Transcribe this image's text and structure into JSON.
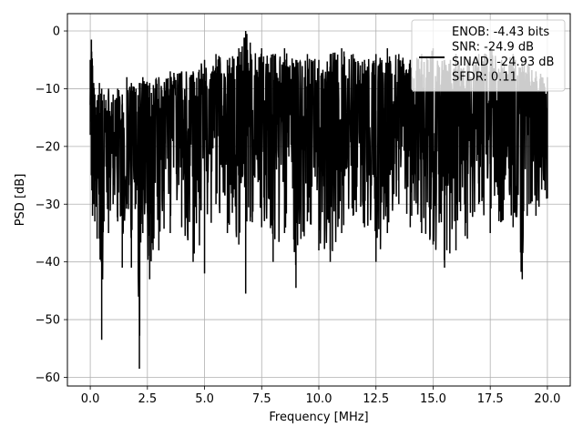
{
  "chart_data": {
    "type": "line",
    "xlabel": "Frequency [MHz]",
    "ylabel": "PSD [dB]",
    "xlim": [
      -1.0,
      21.0
    ],
    "ylim": [
      -61.5,
      3.0
    ],
    "x_ticks": [
      "0.0",
      "2.5",
      "5.0",
      "7.5",
      "10.0",
      "12.5",
      "15.0",
      "17.5",
      "20.0"
    ],
    "y_ticks": [
      "0",
      "−10",
      "−20",
      "−30",
      "−40",
      "−50",
      "−60"
    ],
    "grid": true,
    "legend_position": "top-right",
    "line_color": "#000000",
    "series": [
      {
        "name": "ENOB: -4.43 bits\nSNR: -24.9 dB\nSINAD: -24.93 dB\nSFDR: 0.11",
        "legend_lines": [
          "ENOB: -4.43 bits",
          "SNR: -24.9 dB",
          "SINAD: -24.93 dB",
          "SFDR: 0.11"
        ],
        "x": [
          0.0,
          0.05,
          0.1,
          0.15,
          0.2,
          0.3,
          0.4,
          0.5,
          0.6,
          0.8,
          1.0,
          1.2,
          1.4,
          1.6,
          1.8,
          2.0,
          2.15,
          2.3,
          2.6,
          3.0,
          3.5,
          4.0,
          4.5,
          5.0,
          5.5,
          6.0,
          6.5,
          6.8,
          6.85,
          7.0,
          7.5,
          8.0,
          8.5,
          9.0,
          9.5,
          10.0,
          10.5,
          11.0,
          11.5,
          12.0,
          12.5,
          13.0,
          13.5,
          14.0,
          14.5,
          15.0,
          15.5,
          16.0,
          16.5,
          17.0,
          17.5,
          18.0,
          18.5,
          18.9,
          19.2,
          19.5,
          20.0
        ],
        "upper_envelope": [
          -5,
          -1.5,
          -6,
          -9,
          -11,
          -12,
          -9,
          -10,
          -11,
          -10,
          -11,
          -10,
          -11,
          -8,
          -9,
          -10,
          -9,
          -8,
          -9,
          -8,
          -7,
          -7,
          -7,
          -5,
          -4,
          -5,
          -3,
          0,
          -0.5,
          -2,
          -3,
          -4,
          -3,
          -5,
          -4,
          -5,
          -4,
          -3,
          -4,
          -5,
          -4,
          -3,
          -4,
          -5,
          -4,
          -3,
          -5,
          -4,
          -5,
          -4,
          -3,
          -5,
          -4,
          -5,
          -6,
          -7,
          -8
        ],
        "lower_envelope": [
          -18,
          -25,
          -32,
          -30,
          -33,
          -36,
          -36,
          -53.5,
          -33,
          -35,
          -30,
          -33,
          -41,
          -30,
          -41,
          -30,
          -58.5,
          -35,
          -43,
          -38,
          -35,
          -34,
          -40,
          -42,
          -30,
          -35,
          -37,
          -45.5,
          -33,
          -33,
          -34,
          -40,
          -35,
          -44.5,
          -33,
          -38,
          -40,
          -35,
          -32,
          -34,
          -40,
          -35,
          -30,
          -34,
          -35,
          -37,
          -41,
          -38,
          -36,
          -30,
          -35,
          -33,
          -34,
          -43,
          -30,
          -32,
          -29
        ]
      }
    ]
  }
}
